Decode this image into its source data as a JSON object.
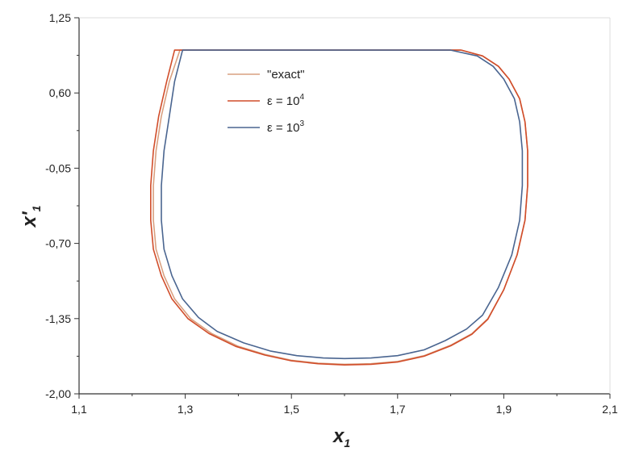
{
  "chart_data": {
    "type": "line",
    "title": "",
    "xlabel": "x",
    "xlabel_sub": "1",
    "ylabel": "x'",
    "ylabel_sub": "1",
    "xlim": [
      1.1,
      2.1
    ],
    "ylim": [
      -2.0,
      1.25
    ],
    "x_ticks": [
      1.1,
      1.3,
      1.5,
      1.7,
      1.9,
      2.1
    ],
    "x_tick_labels": [
      "1,1",
      "1,3",
      "1,5",
      "1,7",
      "1,9",
      "2,1"
    ],
    "y_ticks": [
      1.25,
      0.6,
      -0.05,
      -0.7,
      -1.35,
      -2.0
    ],
    "y_tick_labels": [
      "1,25",
      "0,60",
      "-0,05",
      "-0,70",
      "-1,35",
      "-2,00"
    ],
    "grid": false,
    "legend_position": "top-center",
    "series": [
      {
        "name": "\"exact\"",
        "legend_text": "\"exact\"",
        "color": "#d9a080",
        "x": [
          1.82,
          1.75,
          1.65,
          1.55,
          1.45,
          1.35,
          1.29,
          1.27,
          1.255,
          1.245,
          1.24,
          1.24,
          1.245,
          1.26,
          1.28,
          1.31,
          1.35,
          1.4,
          1.45,
          1.5,
          1.55,
          1.6,
          1.65,
          1.7,
          1.75,
          1.8,
          1.84,
          1.87,
          1.9,
          1.925,
          1.94,
          1.945,
          1.945,
          1.94,
          1.93,
          1.91,
          1.89,
          1.86,
          1.82
        ],
        "y": [
          0.97,
          0.97,
          0.97,
          0.97,
          0.97,
          0.97,
          0.97,
          0.7,
          0.4,
          0.1,
          -0.2,
          -0.5,
          -0.75,
          -0.98,
          -1.18,
          -1.35,
          -1.48,
          -1.59,
          -1.66,
          -1.71,
          -1.735,
          -1.745,
          -1.74,
          -1.72,
          -1.67,
          -1.58,
          -1.48,
          -1.35,
          -1.1,
          -0.8,
          -0.5,
          -0.2,
          0.1,
          0.35,
          0.55,
          0.72,
          0.83,
          0.92,
          0.97
        ]
      },
      {
        "name": "ε = 10⁴",
        "legend_base": "ε = 10",
        "legend_exp": "4",
        "color": "#d14d2a",
        "x": [
          1.82,
          1.75,
          1.65,
          1.55,
          1.45,
          1.35,
          1.28,
          1.265,
          1.25,
          1.24,
          1.235,
          1.235,
          1.24,
          1.255,
          1.275,
          1.305,
          1.345,
          1.395,
          1.45,
          1.5,
          1.55,
          1.6,
          1.65,
          1.7,
          1.75,
          1.8,
          1.84,
          1.87,
          1.9,
          1.925,
          1.94,
          1.945,
          1.945,
          1.94,
          1.93,
          1.91,
          1.89,
          1.86,
          1.82
        ],
        "y": [
          0.97,
          0.97,
          0.97,
          0.97,
          0.97,
          0.97,
          0.97,
          0.7,
          0.4,
          0.1,
          -0.2,
          -0.5,
          -0.75,
          -0.98,
          -1.18,
          -1.35,
          -1.48,
          -1.59,
          -1.665,
          -1.715,
          -1.74,
          -1.75,
          -1.745,
          -1.725,
          -1.675,
          -1.585,
          -1.485,
          -1.355,
          -1.1,
          -0.8,
          -0.5,
          -0.2,
          0.1,
          0.35,
          0.55,
          0.72,
          0.83,
          0.92,
          0.97
        ]
      },
      {
        "name": "ε = 10³",
        "legend_base": "ε = 10",
        "legend_exp": "3",
        "color": "#4a6590",
        "x": [
          1.8,
          1.75,
          1.65,
          1.55,
          1.45,
          1.35,
          1.295,
          1.28,
          1.27,
          1.26,
          1.255,
          1.255,
          1.26,
          1.275,
          1.295,
          1.325,
          1.36,
          1.41,
          1.46,
          1.51,
          1.56,
          1.6,
          1.65,
          1.7,
          1.75,
          1.79,
          1.83,
          1.86,
          1.89,
          1.915,
          1.93,
          1.935,
          1.935,
          1.93,
          1.92,
          1.9,
          1.88,
          1.85,
          1.8
        ],
        "y": [
          0.97,
          0.97,
          0.97,
          0.97,
          0.97,
          0.97,
          0.97,
          0.7,
          0.4,
          0.1,
          -0.2,
          -0.5,
          -0.75,
          -0.98,
          -1.18,
          -1.34,
          -1.46,
          -1.56,
          -1.63,
          -1.67,
          -1.69,
          -1.695,
          -1.69,
          -1.67,
          -1.62,
          -1.54,
          -1.44,
          -1.32,
          -1.08,
          -0.8,
          -0.5,
          -0.2,
          0.1,
          0.35,
          0.55,
          0.72,
          0.83,
          0.92,
          0.97
        ]
      }
    ]
  }
}
